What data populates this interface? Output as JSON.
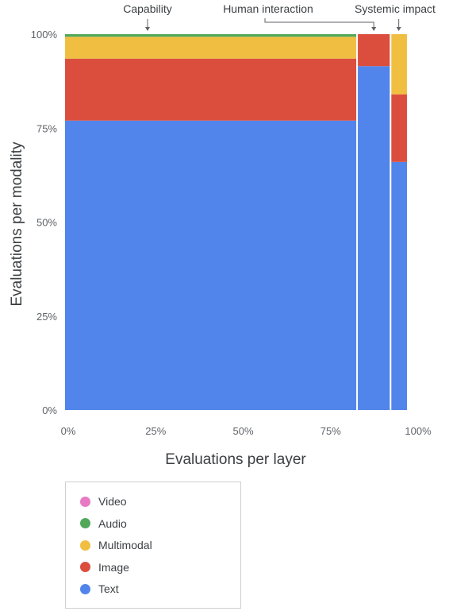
{
  "chart_data": {
    "type": "mosaic",
    "xlabel": "Evaluations per layer",
    "ylabel": "Evaluations per modality",
    "x_ticks": [
      "0%",
      "25%",
      "50%",
      "75%",
      "100%"
    ],
    "y_ticks": [
      "0%",
      "25%",
      "50%",
      "75%",
      "100%"
    ],
    "xlim": [
      0,
      100
    ],
    "ylim": [
      0,
      100
    ],
    "layers": [
      {
        "name": "Capability",
        "width_pct": 85.4,
        "segments": [
          {
            "modality": "Text",
            "value": 77
          },
          {
            "modality": "Image",
            "value": 16.5
          },
          {
            "modality": "Multimodal",
            "value": 5.8
          },
          {
            "modality": "Audio",
            "value": 1.4
          }
        ]
      },
      {
        "name": "Human interaction",
        "width_pct": 9.8,
        "segments": [
          {
            "modality": "Text",
            "value": 91.5
          },
          {
            "modality": "Image",
            "value": 9.5
          }
        ]
      },
      {
        "name": "Systemic impact",
        "width_pct": 4.8,
        "segments": [
          {
            "modality": "Text",
            "value": 66
          },
          {
            "modality": "Image",
            "value": 18
          },
          {
            "modality": "Multimodal",
            "value": 17
          }
        ]
      }
    ],
    "legend": [
      {
        "name": "Video",
        "color": "#e87ac4"
      },
      {
        "name": "Audio",
        "color": "#52a85a"
      },
      {
        "name": "Multimodal",
        "color": "#f0bf42"
      },
      {
        "name": "Image",
        "color": "#db4e3e"
      },
      {
        "name": "Text",
        "color": "#5285eb"
      }
    ],
    "legend_placement": "bottom-left",
    "grid": false
  }
}
